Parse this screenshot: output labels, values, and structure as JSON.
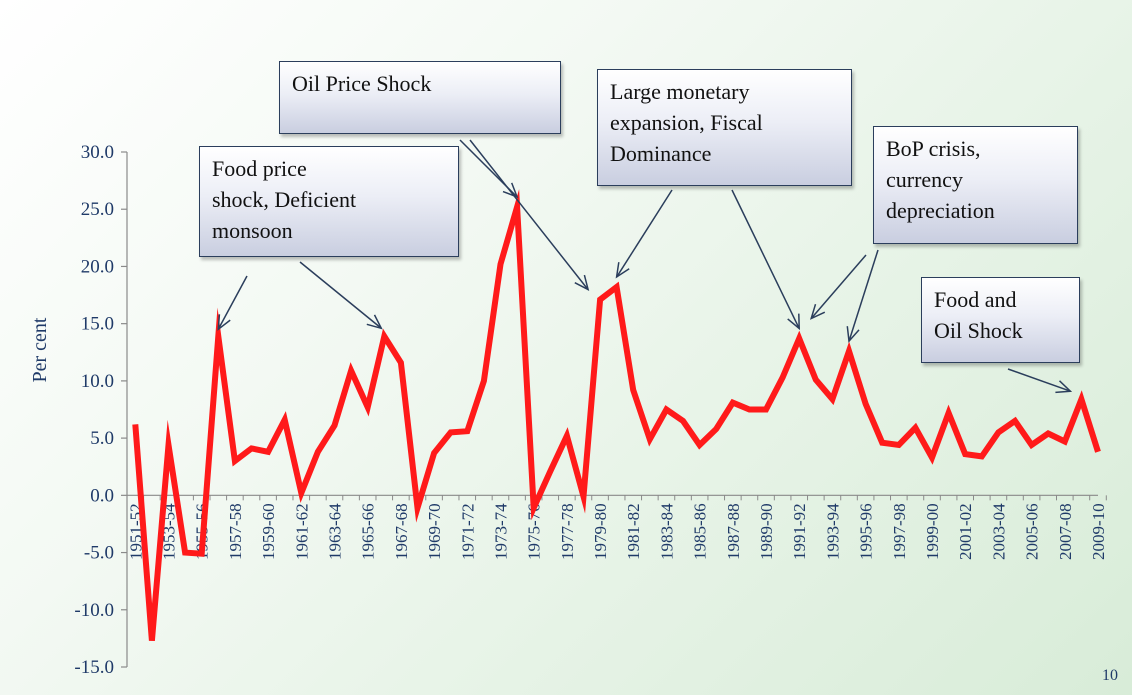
{
  "chart_data": {
    "type": "line",
    "title": "",
    "xlabel": "",
    "ylabel": "Per cent",
    "ylim": [
      -15,
      30
    ],
    "yticks": [
      "30.0",
      "25.0",
      "20.0",
      "15.0",
      "10.0",
      "5.0",
      "0.0",
      "-5.0",
      "-10.0",
      "-15.0"
    ],
    "xticks": [
      "1951-52",
      "1953-54",
      "1955-56",
      "1957-58",
      "1959-60",
      "1961-62",
      "1963-64",
      "1965-66",
      "1967-68",
      "1969-70",
      "1971-72",
      "1973-74",
      "1975-76",
      "1977-78",
      "1979-80",
      "1981-82",
      "1983-84",
      "1985-86",
      "1987-88",
      "1989-90",
      "1991-92",
      "1993-94",
      "1995-96",
      "1997-98",
      "1999-00",
      "2001-02",
      "2003-04",
      "2005-06",
      "2007-08",
      "2009-10"
    ],
    "series": [
      {
        "color": "#ff1a1a",
        "values": [
          6.2,
          -12.7,
          4.4,
          -5.0,
          -5.1,
          13.9,
          3.0,
          4.1,
          3.8,
          6.6,
          0.2,
          3.8,
          6.1,
          10.9,
          7.7,
          13.9,
          11.6,
          -1.1,
          3.7,
          5.5,
          5.6,
          10.0,
          20.2,
          25.2,
          -1.1,
          2.1,
          5.2,
          -0.1,
          17.1,
          18.2,
          9.2,
          4.9,
          7.5,
          6.5,
          4.4,
          5.8,
          8.1,
          7.5,
          7.5,
          10.3,
          13.7,
          10.1,
          8.4,
          12.6,
          8.0,
          4.6,
          4.4,
          5.9,
          3.3,
          7.2,
          3.6,
          3.4,
          5.5,
          6.5,
          4.4,
          5.4,
          4.7,
          8.4,
          3.8
        ]
      }
    ],
    "annotations": [
      {
        "lines": [
          "Food  price",
          "shock, Deficient",
          "monsoon"
        ]
      },
      {
        "lines": [
          "Oil Price Shock"
        ]
      },
      {
        "lines": [
          "Large monetary",
          "expansion, Fiscal",
          "Dominance"
        ]
      },
      {
        "lines": [
          "BoP  crisis,",
          "currency",
          "depreciation"
        ]
      },
      {
        "lines": [
          "Food and",
          "Oil Shock"
        ]
      }
    ],
    "grid": false,
    "legend": "none"
  },
  "page_number": "10"
}
